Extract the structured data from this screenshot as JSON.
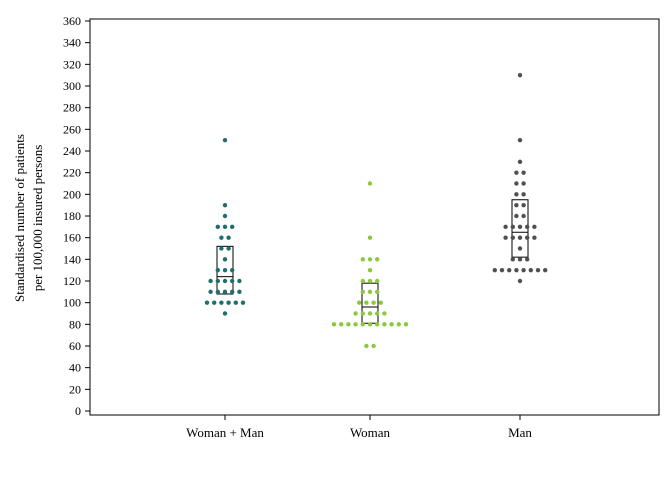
{
  "chart_data": {
    "type": "scatter",
    "subtype": "dot-strip-with-iqr-box",
    "title": "",
    "xlabel": "",
    "ylabel_lines": [
      "Standardised number of patients",
      "per 100,000 insured persons"
    ],
    "ylim": [
      0,
      360
    ],
    "yticks": [
      0,
      20,
      40,
      60,
      80,
      100,
      120,
      140,
      160,
      180,
      200,
      220,
      240,
      260,
      280,
      300,
      320,
      340,
      360
    ],
    "categories": [
      "Woman + Man",
      "Woman",
      "Man"
    ],
    "colors": [
      "#1f6e6e",
      "#8cc83c",
      "#505050"
    ],
    "grid": false,
    "legend": "none",
    "series": [
      {
        "category": "Woman + Man",
        "values": [
          250,
          190,
          180,
          170,
          170,
          170,
          160,
          160,
          150,
          150,
          140,
          130,
          130,
          130,
          120,
          120,
          120,
          120,
          120,
          110,
          110,
          110,
          110,
          110,
          100,
          100,
          100,
          100,
          100,
          100,
          90
        ],
        "box": {
          "q1": 108,
          "median": 124,
          "q3": 152
        }
      },
      {
        "category": "Woman",
        "values": [
          210,
          160,
          140,
          140,
          140,
          130,
          120,
          120,
          120,
          110,
          110,
          110,
          100,
          100,
          100,
          100,
          90,
          90,
          90,
          90,
          90,
          80,
          80,
          80,
          80,
          80,
          80,
          80,
          80,
          80,
          80,
          80,
          60,
          60
        ],
        "box": {
          "q1": 81,
          "median": 96,
          "q3": 118
        }
      },
      {
        "category": "Man",
        "values": [
          310,
          250,
          230,
          220,
          220,
          210,
          210,
          200,
          200,
          190,
          190,
          180,
          180,
          170,
          170,
          170,
          170,
          170,
          160,
          160,
          160,
          160,
          160,
          150,
          140,
          140,
          140,
          130,
          130,
          130,
          130,
          130,
          130,
          130,
          130,
          120
        ],
        "box": {
          "q1": 142,
          "median": 165,
          "q3": 195
        }
      }
    ]
  }
}
